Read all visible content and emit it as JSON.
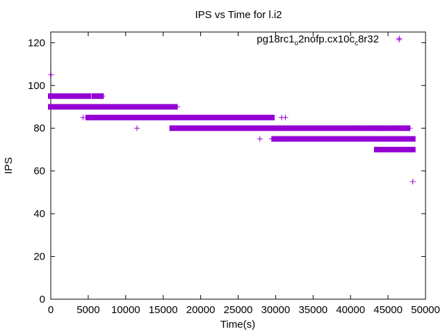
{
  "chart_data": {
    "type": "scatter",
    "title": "IPS vs Time for l.i2",
    "xlabel": "Time(s)",
    "ylabel": "IPS",
    "xlim": [
      0,
      50000
    ],
    "ylim": [
      0,
      125
    ],
    "xticks": [
      0,
      5000,
      10000,
      15000,
      20000,
      25000,
      30000,
      35000,
      40000,
      45000,
      50000
    ],
    "yticks": [
      0,
      20,
      40,
      60,
      80,
      100,
      120
    ],
    "grid": false,
    "legend_position": "top-right",
    "series": [
      {
        "name_parts": [
          "pg18rc1",
          "o",
          "2nofp.cx10c",
          "c",
          "8r32"
        ],
        "color": "#9400d3",
        "marker": "plus",
        "bands": [
          {
            "y": 95,
            "x": [
              0,
              5000
            ]
          },
          {
            "y": 95,
            "x": [
              5800,
              6700
            ]
          },
          {
            "y": 90,
            "x": [
              0,
              16500
            ]
          },
          {
            "y": 85,
            "x": [
              5000,
              29500
            ]
          },
          {
            "y": 80,
            "x": [
              16200,
              47600
            ]
          },
          {
            "y": 75,
            "x": [
              29800,
              48300
            ]
          },
          {
            "y": 70,
            "x": [
              43500,
              48300
            ]
          }
        ],
        "points": [
          [
            50,
            105
          ],
          [
            5800,
            95
          ],
          [
            6200,
            95
          ],
          [
            6500,
            95
          ],
          [
            6900,
            95
          ],
          [
            16000,
            90
          ],
          [
            16600,
            90
          ],
          [
            16900,
            90
          ],
          [
            4300,
            85
          ],
          [
            30800,
            85
          ],
          [
            31300,
            85
          ],
          [
            11500,
            80
          ],
          [
            40800,
            80
          ],
          [
            43200,
            80
          ],
          [
            43800,
            80
          ],
          [
            44300,
            80
          ],
          [
            46000,
            80
          ],
          [
            47900,
            80
          ],
          [
            27900,
            75
          ],
          [
            29500,
            75
          ],
          [
            30500,
            75
          ],
          [
            31000,
            75
          ],
          [
            43600,
            70
          ],
          [
            44100,
            70
          ],
          [
            44500,
            70
          ],
          [
            45200,
            70
          ],
          [
            45700,
            70
          ],
          [
            47400,
            70
          ],
          [
            48200,
            70
          ],
          [
            46500,
            122
          ],
          [
            48300,
            55
          ]
        ]
      }
    ]
  }
}
